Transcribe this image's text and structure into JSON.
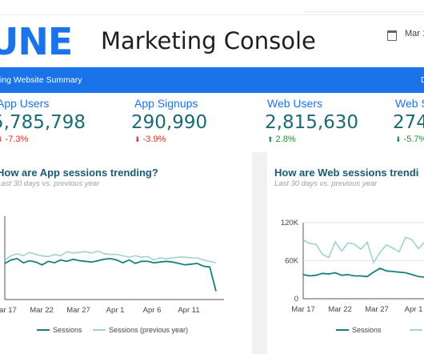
{
  "header": {
    "logo_text": "UNE",
    "title": "Marketing Console",
    "date_icon": "calendar-icon",
    "date_text": "Mar 1"
  },
  "banner": {
    "title": "ing Website Summary",
    "right_text": "D"
  },
  "kpis": [
    {
      "label": "App Users",
      "value": "5,785,798",
      "delta": "-7.3%",
      "direction": "down"
    },
    {
      "label": "App Signups",
      "value": "290,990",
      "delta": "-3.9%",
      "direction": "down"
    },
    {
      "label": "Web Users",
      "value": "2,815,630",
      "delta": "2.8%",
      "direction": "up"
    },
    {
      "label": "Web S",
      "value": "274",
      "delta": "-5.7%",
      "direction": "up"
    }
  ],
  "colors": {
    "accent": "#1a73e8",
    "kpi_value": "#1a6b73",
    "down": "#d93025",
    "up": "#1e8e3e",
    "series_current": "#17807e",
    "series_previous": "#9ed3cf"
  },
  "chart_data": [
    {
      "type": "line",
      "title": "How are App sessions trending?",
      "subtitle": "Last 30 days vs. previous year",
      "x_ticks": [
        "Mar 17",
        "Mar 22",
        "Mar 27",
        "Apr 1",
        "Apr 6",
        "Apr 11"
      ],
      "legend": [
        "Sessions",
        "Sessions (previous year)"
      ],
      "legend_position": "bottom",
      "ylim": [
        0,
        120000
      ],
      "series": [
        {
          "name": "Sessions",
          "values": [
            52000,
            57000,
            59000,
            53000,
            56000,
            54000,
            50000,
            55000,
            53000,
            57000,
            55000,
            58000,
            56000,
            55000,
            54000,
            56000,
            58000,
            59000,
            57000,
            53000,
            57000,
            52000,
            55000,
            55000,
            53000,
            54000,
            55000,
            54000,
            52000,
            50000,
            51000,
            52000,
            48000,
            47000,
            12000
          ]
        },
        {
          "name": "Sessions (previous year)",
          "values": [
            57000,
            63000,
            66000,
            63000,
            68000,
            65000,
            63000,
            62000,
            65000,
            63000,
            69000,
            67000,
            68000,
            69000,
            67000,
            70000,
            66000,
            65000,
            65000,
            63000,
            61000,
            63000,
            61000,
            62000,
            57000,
            60000,
            59000,
            60000,
            61000,
            61000,
            60000,
            60000,
            57000,
            55000,
            53000
          ]
        }
      ]
    },
    {
      "type": "line",
      "title": "How are Web sessions trendi",
      "subtitle": "Last 30 days vs. previous year",
      "x_ticks": [
        "Mar 17",
        "Mar 22",
        "Mar 27",
        "Apr 1"
      ],
      "y_ticks": [
        "0",
        "60K",
        "120K"
      ],
      "legend": [
        "Sessions",
        "Sessions"
      ],
      "legend_position": "bottom",
      "ylim": [
        0,
        120000
      ],
      "series": [
        {
          "name": "Sessions",
          "values": [
            38000,
            36000,
            37000,
            40000,
            39000,
            41000,
            37000,
            38000,
            36000,
            36000,
            35000,
            42000,
            48000,
            44000,
            43000,
            42000,
            41000,
            38000,
            35000,
            34000,
            40000
          ]
        },
        {
          "name": "Sessions",
          "values": [
            93000,
            87000,
            86000,
            70000,
            65000,
            90000,
            75000,
            88000,
            86000,
            78000,
            89000,
            57000,
            73000,
            85000,
            80000,
            74000,
            97000,
            93000,
            79000,
            90000,
            88000
          ]
        }
      ]
    }
  ]
}
